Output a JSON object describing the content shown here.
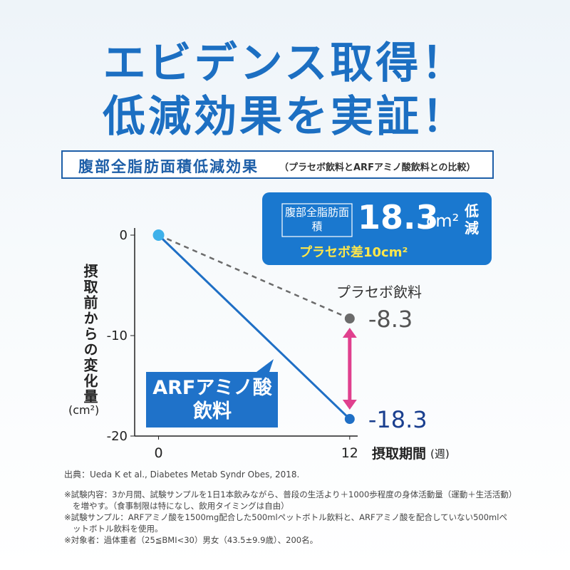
{
  "header": {
    "lines": [
      "エビデンス取得！",
      "低減効果を実証！"
    ]
  },
  "chart_data": {
    "type": "line",
    "title": "腹部全脂肪面積低減効果",
    "subtitle": "（プラセボ飲料とARFアミノ酸飲料との比較）",
    "y_label": "摂取前からの変化量",
    "y_unit": "(cm²)",
    "x_label": "摂取期間",
    "x_unit": "(週)",
    "x": [
      0,
      12
    ],
    "xlim": [
      -1.5,
      12.5
    ],
    "xticks": [
      0,
      12
    ],
    "ylim": [
      -20,
      0
    ],
    "yticks": [
      0,
      -10,
      -20
    ],
    "series": [
      {
        "name": "ARFアミノ酸飲料",
        "color": "#1f6fc5",
        "values": [
          0,
          -18.3
        ]
      },
      {
        "name": "プラセボ飲料",
        "color": "#6b6b6b",
        "values": [
          0,
          -8.3
        ]
      }
    ]
  },
  "callout": {
    "label": "腹部全脂肪面積",
    "value": "18.3",
    "unit": "cm²",
    "suffix": "低減",
    "difference": "プラセボ差10cm²"
  },
  "footnotes": {
    "source": "出典：Ueda K et al., Diabetes Metab Syndr Obes, 2018.",
    "notes": [
      "※試験内容：3か月間、試験サンプルを1日1本飲みながら、普段の生活より＋1000歩程度の身体活動量（運動＋生活活動）を増やす。（食事制限は特になし、飲用タイミングは自由）",
      "※試験サンプル：ARFアミノ酸を1500mg配合した500mlペットボトル飲料と、ARFアミノ酸を配合していない500mlペットボトル飲料を使用。",
      "※対象者：過体重者（25≦BMI<30）男女（43.5±9.9歳）、200名。"
    ]
  }
}
